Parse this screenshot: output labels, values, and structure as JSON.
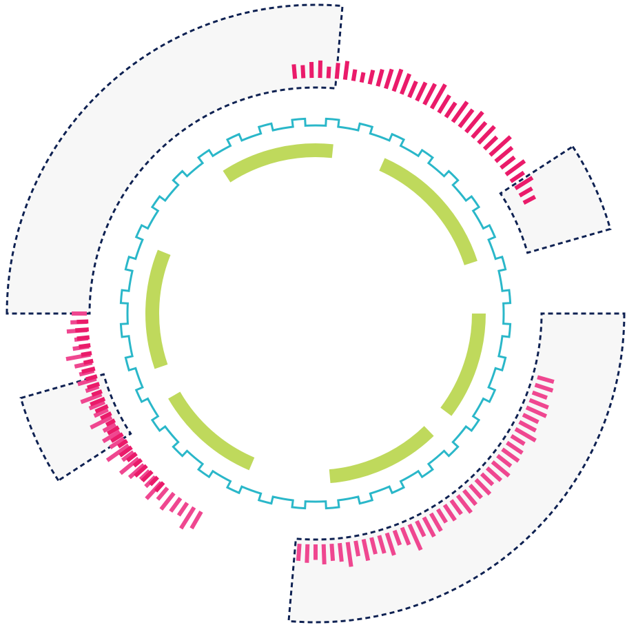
{
  "colors": {
    "background": "#ffffff",
    "panel_fill": "#f7f7f7",
    "panel_stroke": "#0e2152",
    "ticks_dark": "#ea1b6a",
    "ticks_light": "#ef4790",
    "gear": "#2ab7c9",
    "arcs": "#bfd95c"
  },
  "diagram": {
    "panels": [
      {
        "name": "panel-top-left",
        "start_deg": -90,
        "end_deg": 5
      },
      {
        "name": "panel-right-small",
        "start_deg": 57,
        "end_deg": 74
      },
      {
        "name": "panel-bottom-right",
        "start_deg": 90,
        "end_deg": 185
      },
      {
        "name": "panel-left-small",
        "start_deg": 237,
        "end_deg": 254
      }
    ],
    "tick_groups": [
      {
        "name": "ticks-top",
        "start_deg": -5,
        "end_deg": 62,
        "count": 34,
        "tone": "dark",
        "lengths": [
          0.5,
          0.45,
          0.55,
          0.6,
          0.4,
          0.55,
          0.65,
          0.4,
          0.35,
          0.5,
          0.6,
          0.7,
          0.8,
          0.75,
          0.6,
          0.7,
          0.8,
          0.95,
          0.7,
          0.6,
          0.85,
          0.75,
          0.9,
          0.7,
          0.8,
          0.6,
          0.95,
          0.75,
          0.6,
          0.8,
          0.55,
          0.7,
          0.5,
          0.45
        ]
      },
      {
        "name": "ticks-left",
        "start_deg": -150,
        "end_deg": -90,
        "count": 30,
        "tone": "light",
        "lengths": [
          0.7,
          0.9,
          0.55,
          0.6,
          0.75,
          0.55,
          0.8,
          0.5,
          0.45,
          0.7,
          0.85,
          0.5,
          0.95,
          0.6,
          0.7,
          0.5,
          0.85,
          0.55,
          0.6,
          0.8,
          0.5,
          0.7,
          0.55,
          0.65,
          0.9,
          0.6,
          0.5,
          0.75,
          0.6,
          0.55
        ]
      },
      {
        "name": "ticks-left-lower",
        "start_deg": -138,
        "end_deg": -92,
        "count": 24,
        "tone": "dark",
        "lengths": [
          0.6,
          0.55,
          0.7,
          0.8,
          0.5,
          0.6,
          0.75,
          0.55,
          0.7,
          0.65,
          0.5,
          0.6,
          0.7,
          0.8,
          0.55,
          0.65,
          0.6,
          0.7,
          0.5,
          0.55,
          0.6,
          0.65,
          0.7,
          0.6
        ]
      },
      {
        "name": "ticks-bottom-right",
        "start_deg": 106,
        "end_deg": 184,
        "count": 40,
        "tone": "light",
        "lengths": [
          0.55,
          0.6,
          0.5,
          0.65,
          0.7,
          0.55,
          0.6,
          0.75,
          0.5,
          0.6,
          0.65,
          0.55,
          0.7,
          0.6,
          0.5,
          0.65,
          0.55,
          0.6,
          0.7,
          0.55,
          0.6,
          0.5,
          0.65,
          0.7,
          0.55,
          0.9,
          0.6,
          0.5,
          0.75,
          0.6,
          0.55,
          0.7,
          0.5,
          0.8,
          0.6,
          0.55,
          0.65,
          0.5,
          0.6,
          0.55
        ]
      }
    ],
    "gear_teeth": 36,
    "arc_segments": [
      {
        "start_deg": -33,
        "end_deg": 6
      },
      {
        "start_deg": 24,
        "end_deg": 72
      },
      {
        "start_deg": 90,
        "end_deg": 127
      },
      {
        "start_deg": 136,
        "end_deg": 175
      },
      {
        "start_deg": 203,
        "end_deg": 240
      },
      {
        "start_deg": 251,
        "end_deg": 292
      }
    ]
  }
}
